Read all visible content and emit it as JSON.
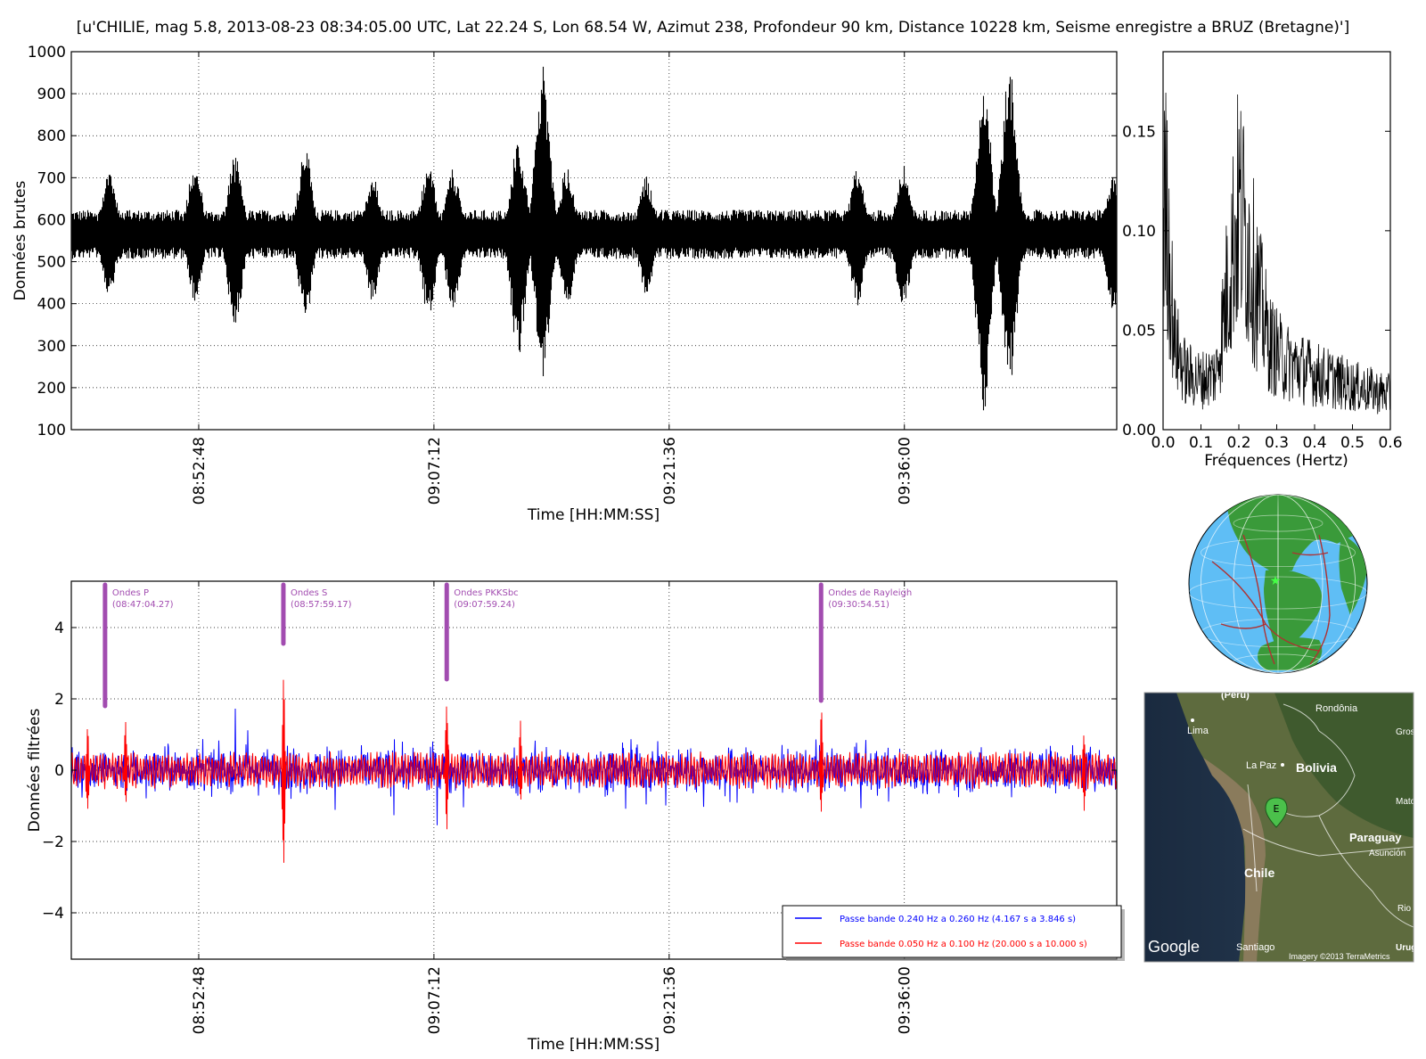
{
  "figure_title": "[u'CHILIE, mag 5.8, 2013-08-23 08:34:05.00 UTC, Lat 22.24 S, Lon 68.54 W, Azimut 238, Profondeur 90 km, Distance 10228 km, Seisme enregistre a BRUZ (Bretagne)']",
  "chart_data": [
    {
      "id": "raw",
      "type": "line",
      "ylabel": "Données brutes",
      "xlabel": "Time [HH:MM:SS]",
      "ylim": [
        100,
        1000
      ],
      "yticks": [
        100,
        200,
        300,
        400,
        500,
        600,
        700,
        800,
        900,
        1000
      ],
      "x_time_range": [
        "08:45:00",
        "09:49:00"
      ],
      "xticks": [
        "08:52:48",
        "09:07:12",
        "09:21:36",
        "09:36:00"
      ],
      "grid": true,
      "series": [
        {
          "color": "#000000",
          "baseline": 565,
          "noise_amplitude": 45,
          "peaks": [
            {
              "t": "08:47:18",
              "min": 415,
              "max": 725
            },
            {
              "t": "08:52:32",
              "min": 405,
              "max": 740
            },
            {
              "t": "08:55:00",
              "min": 340,
              "max": 755
            },
            {
              "t": "08:59:18",
              "min": 360,
              "max": 775
            },
            {
              "t": "09:03:25",
              "min": 405,
              "max": 705
            },
            {
              "t": "09:06:50",
              "min": 370,
              "max": 735
            },
            {
              "t": "09:08:20",
              "min": 380,
              "max": 720
            },
            {
              "t": "09:12:20",
              "min": 270,
              "max": 790
            },
            {
              "t": "09:13:50",
              "min": 220,
              "max": 975
            },
            {
              "t": "09:15:20",
              "min": 390,
              "max": 730
            },
            {
              "t": "09:20:10",
              "min": 420,
              "max": 705
            },
            {
              "t": "09:33:05",
              "min": 395,
              "max": 720
            },
            {
              "t": "09:35:55",
              "min": 390,
              "max": 730
            },
            {
              "t": "09:40:50",
              "min": 140,
              "max": 935
            },
            {
              "t": "09:42:25",
              "min": 205,
              "max": 970
            },
            {
              "t": "09:48:45",
              "min": 385,
              "max": 705
            }
          ]
        }
      ]
    },
    {
      "id": "spectrum",
      "type": "line",
      "xlabel": "Fréquences (Hertz)",
      "ylabel": "",
      "xlim": [
        0.0,
        0.6
      ],
      "ylim": [
        0.0,
        0.19
      ],
      "xticks": [
        "0.0",
        "0.1",
        "0.2",
        "0.3",
        "0.4",
        "0.5",
        "0.6"
      ],
      "yticks": [
        "0.00",
        "0.05",
        "0.10",
        "0.15"
      ],
      "grid": false,
      "series": [
        {
          "color": "#000000",
          "envelope": [
            {
              "f": 0.0,
              "max": 0.19
            },
            {
              "f": 0.01,
              "max": 0.17
            },
            {
              "f": 0.03,
              "max": 0.07
            },
            {
              "f": 0.06,
              "max": 0.045
            },
            {
              "f": 0.1,
              "max": 0.04
            },
            {
              "f": 0.14,
              "max": 0.045
            },
            {
              "f": 0.16,
              "max": 0.09
            },
            {
              "f": 0.18,
              "max": 0.14
            },
            {
              "f": 0.2,
              "max": 0.178
            },
            {
              "f": 0.22,
              "max": 0.155
            },
            {
              "f": 0.25,
              "max": 0.11
            },
            {
              "f": 0.28,
              "max": 0.07
            },
            {
              "f": 0.32,
              "max": 0.055
            },
            {
              "f": 0.4,
              "max": 0.045
            },
            {
              "f": 0.5,
              "max": 0.035
            },
            {
              "f": 0.6,
              "max": 0.028
            }
          ]
        }
      ]
    },
    {
      "id": "filtered",
      "type": "line",
      "ylabel": "Données filtrées",
      "xlabel": "Time [HH:MM:SS]",
      "ylim": [
        -5.3,
        5.3
      ],
      "yticks": [
        -4,
        -2,
        0,
        2,
        4
      ],
      "x_time_range": [
        "08:45:00",
        "09:49:00"
      ],
      "xticks": [
        "08:52:48",
        "09:07:12",
        "09:21:36",
        "09:36:00"
      ],
      "grid": true,
      "legend_position": "lower right",
      "series": [
        {
          "name": "Passe bande 0.240 Hz a 0.260 Hz (4.167 s a 3.846 s)",
          "color": "#0000ff",
          "amplitude": 0.75,
          "max_abs": 1.95
        },
        {
          "name": "Passe bande 0.050 Hz a 0.100 Hz (20.000 s a 10.000 s)",
          "color": "#ff0000",
          "amplitude": 0.45,
          "max_abs": 2.9,
          "spikes": [
            {
              "t": "08:46:00",
              "min": -1.2,
              "max": 1.3
            },
            {
              "t": "08:48:20",
              "min": -1.0,
              "max": 1.4
            },
            {
              "t": "08:58:00",
              "min": -2.9,
              "max": 2.8
            },
            {
              "t": "09:07:59",
              "min": -1.8,
              "max": 2.0
            },
            {
              "t": "09:12:30",
              "min": -1.0,
              "max": 1.4
            },
            {
              "t": "09:30:55",
              "min": -1.2,
              "max": 1.9
            },
            {
              "t": "09:47:00",
              "min": -1.2,
              "max": 1.1
            }
          ]
        }
      ],
      "annotations": [
        {
          "label": "Ondes P",
          "time": "(08:47:04.27)",
          "t": "08:47:04",
          "y_bottom": 1.8,
          "y_top": 5.2
        },
        {
          "label": "Ondes S",
          "time": "(08:57:59.17)",
          "t": "08:57:59",
          "y_bottom": 3.55,
          "y_top": 5.2
        },
        {
          "label": "Ondes PKKSbc",
          "time": "(09:07:59.24)",
          "t": "09:07:59",
          "y_bottom": 2.55,
          "y_top": 5.2
        },
        {
          "label": "Ondes de Rayleigh",
          "time": "(09:30:54.51)",
          "t": "09:30:54",
          "y_bottom": 1.95,
          "y_top": 5.2
        }
      ]
    }
  ],
  "globe": {
    "ocean_color": "#5fbef5",
    "land_color": "#3a9a3a",
    "boundary_color": "#b03030",
    "epicenter_color": "#44ff44"
  },
  "map": {
    "labels": {
      "peru": "(Perú)",
      "rondonia": "Rondônia",
      "lima": "Lima",
      "gros": "Gros",
      "la_paz": "La Paz",
      "bolivia": "Bolivia",
      "mato": "Mato",
      "paraguay": "Paraguay",
      "asuncion": "Asunción",
      "chile": "Chile",
      "rio": "Rio",
      "santiago": "Santiago",
      "uruguay": "Urugu",
      "google": "Google",
      "imagery": "Imagery ©2013 TerraMetrics",
      "marker": "E"
    }
  }
}
